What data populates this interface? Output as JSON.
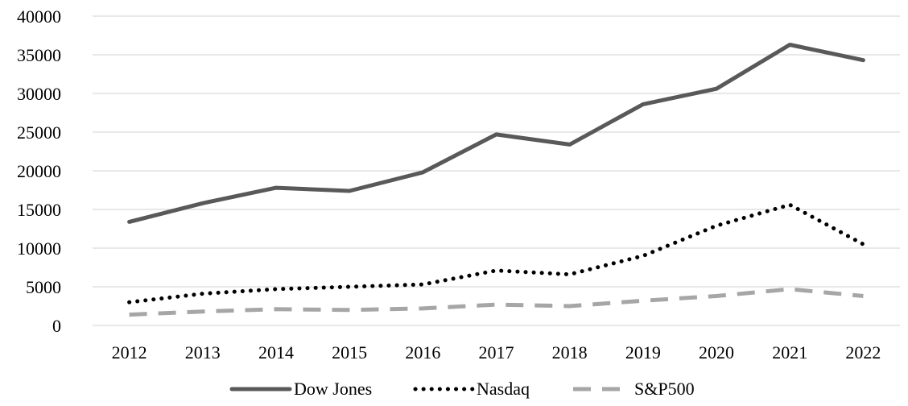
{
  "chart_data": {
    "type": "line",
    "title": "",
    "xlabel": "",
    "ylabel": "",
    "categories": [
      "2012",
      "2013",
      "2014",
      "2015",
      "2016",
      "2017",
      "2018",
      "2019",
      "2020",
      "2021",
      "2022"
    ],
    "ylim": [
      0,
      40000
    ],
    "yticks": [
      "0",
      "5000",
      "10000",
      "15000",
      "20000",
      "25000",
      "30000",
      "35000",
      "40000"
    ],
    "grid": true,
    "legend_position": "bottom",
    "series": [
      {
        "name": "Dow Jones",
        "style": "solid",
        "color": "#595959",
        "values": [
          13400,
          15800,
          17800,
          17400,
          19800,
          24700,
          23400,
          28600,
          30600,
          36300,
          34300
        ]
      },
      {
        "name": "Nasdaq",
        "style": "dotted",
        "color": "#000000",
        "values": [
          3000,
          4100,
          4700,
          5000,
          5300,
          7100,
          6600,
          9000,
          12900,
          15600,
          10500
        ]
      },
      {
        "name": "S&P500",
        "style": "dashed",
        "color": "#a6a6a6",
        "values": [
          1400,
          1800,
          2100,
          2000,
          2200,
          2700,
          2500,
          3200,
          3800,
          4700,
          3800
        ]
      }
    ]
  }
}
